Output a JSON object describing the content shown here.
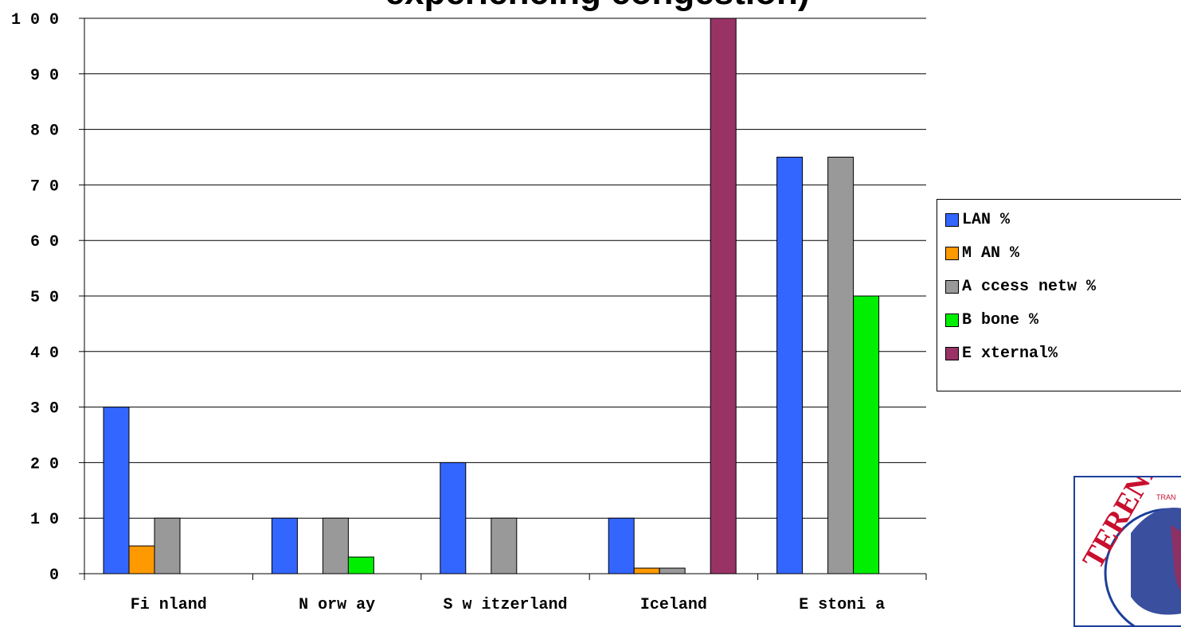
{
  "chart_data": {
    "type": "bar",
    "title": "experiencing congestion)",
    "categories": [
      "Finland",
      "Norway",
      "Switzerland",
      "Iceland",
      "Estonia"
    ],
    "category_labels": [
      "Fi nland",
      "N orw ay",
      "S w itzerland",
      "Iceland",
      "E stoni a"
    ],
    "series": [
      {
        "name": "LAN %",
        "label": "LAN %",
        "color": "#3366ff",
        "values": [
          30,
          10,
          20,
          10,
          75
        ]
      },
      {
        "name": "MAN %",
        "label": "M AN %",
        "color": "#ff9900",
        "values": [
          5,
          0,
          0,
          1,
          0
        ]
      },
      {
        "name": "Access netw %",
        "label": "A ccess netw %",
        "color": "#999999",
        "values": [
          10,
          10,
          10,
          1,
          75
        ]
      },
      {
        "name": "Bbone %",
        "label": "B bone %",
        "color": "#00ee00",
        "values": [
          0,
          3,
          0,
          0,
          50
        ]
      },
      {
        "name": "External%",
        "label": "E xternal%",
        "color": "#993366",
        "values": [
          0,
          0,
          0,
          100,
          0
        ]
      }
    ],
    "ylim": [
      0,
      100
    ],
    "yticks": [
      "0",
      "1 0",
      "2 0",
      "3 0",
      "4 0",
      "5 0",
      "6 0",
      "7 0",
      "8 0",
      "9 0",
      "1 0 0"
    ],
    "grid": true,
    "legend_position": "right"
  },
  "logo": {
    "text": "TERENA",
    "subtext": "TRAN"
  }
}
